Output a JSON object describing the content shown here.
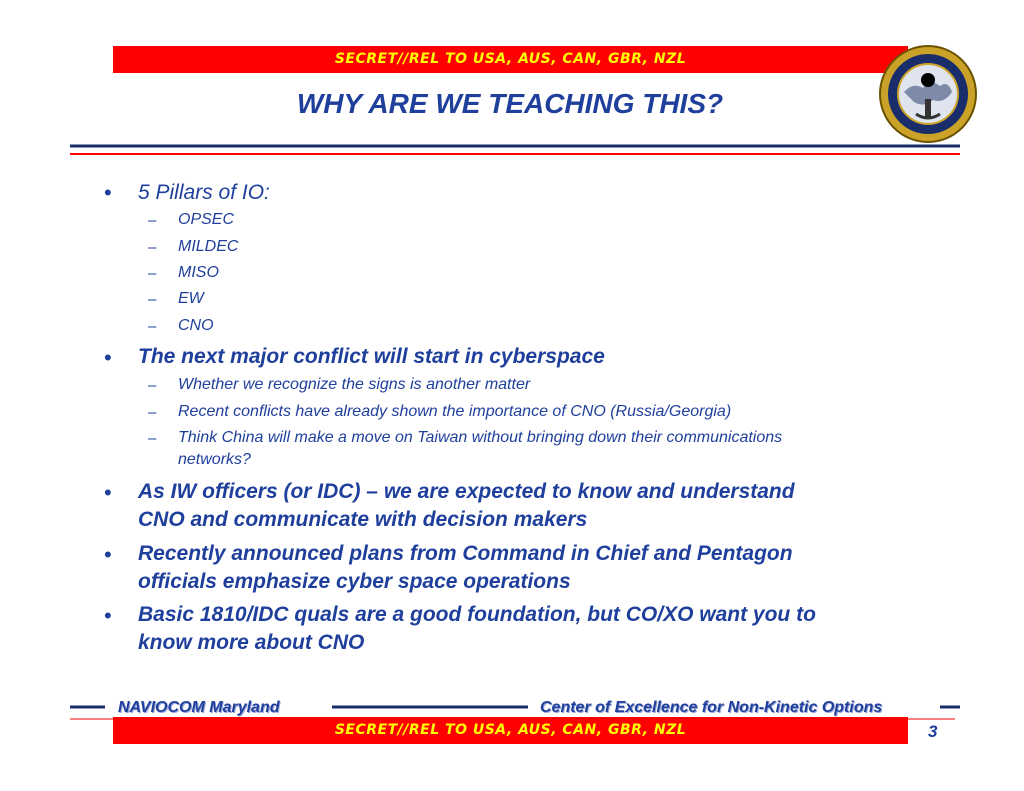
{
  "banner": {
    "top": "SECRET//REL TO USA, AUS, CAN, GBR, NZL",
    "bottom": "SECRET//REL TO USA, AUS, CAN, GBR, NZL"
  },
  "title": "WHY ARE WE TEACHING THIS?",
  "bullets": [
    {
      "text": "5 Pillars of IO:",
      "bold": false,
      "sub": [
        "OPSEC",
        "MILDEC",
        "MISO",
        "EW",
        "CNO"
      ]
    },
    {
      "text": "The next major conflict will start in cyberspace",
      "bold": true,
      "sub": [
        "Whether we recognize the signs is another matter",
        "Recent conflicts have already shown the importance of CNO (Russia/Georgia)",
        "Think China will make a move on Taiwan without bringing down their communications",
        "networks?"
      ]
    },
    {
      "text": "As IW officers (or IDC) – we are expected to know and understand",
      "text2": "CNO and communicate with decision makers",
      "bold": true
    },
    {
      "text": "Recently announced plans from Command in Chief and Pentagon",
      "text2": "officials emphasize cyber space operations",
      "bold": true
    },
    {
      "text": "Basic 1810/IDC quals are a good foundation, but CO/XO want you to",
      "text2": "know more about CNO",
      "bold": true
    }
  ],
  "footer": {
    "left": "NAVIOCOM Maryland",
    "right": "Center of Excellence for Non-Kinetic Options",
    "page": "3"
  },
  "seal": {
    "top_text": "NAVY INFORMATION OPERATIONS COMMAND MARYLAND",
    "bottom_text": "NETWARCOM"
  },
  "colors": {
    "banner_bg": "#ff0000",
    "banner_text": "#ffff00",
    "text": "#1f3f9c"
  }
}
